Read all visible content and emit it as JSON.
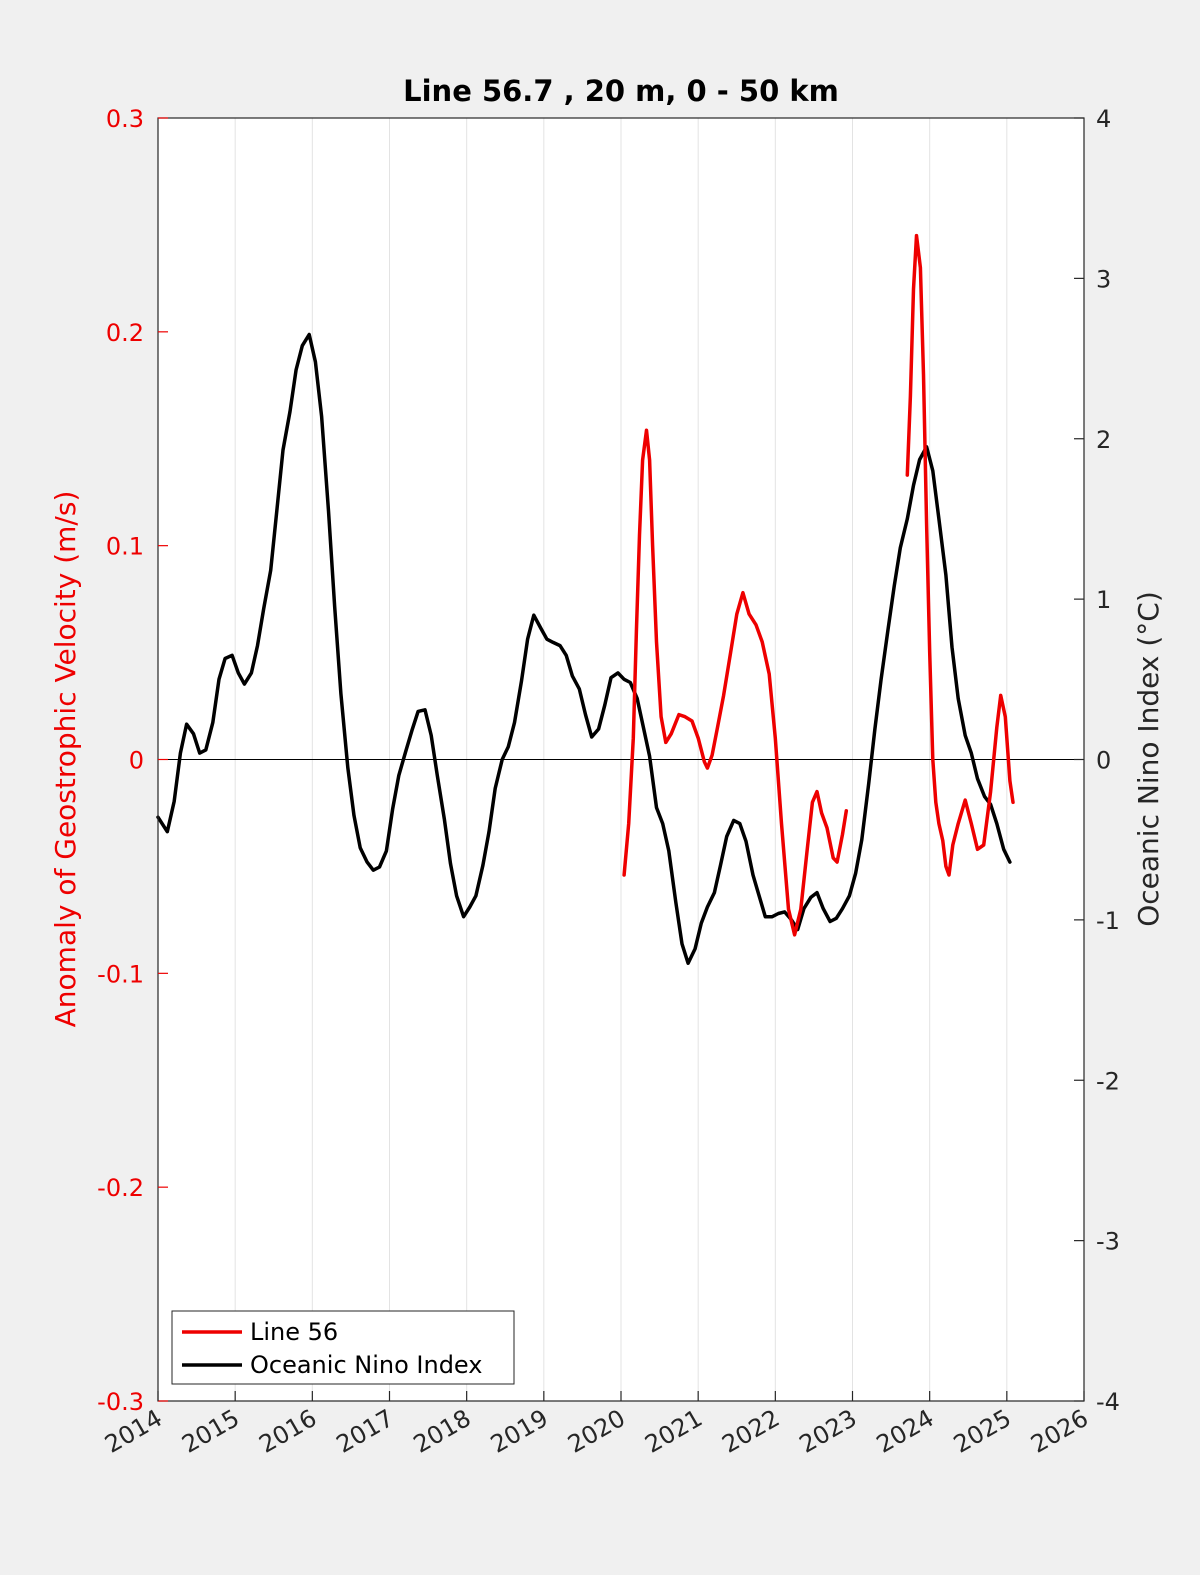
{
  "colors": {
    "figure_background": "#f0f0f0",
    "axes_background": "#ffffff",
    "line56": "#ee0000",
    "oni": "#000000",
    "left_axis": "#ee0000",
    "right_axis": "#262626",
    "grid": "#e3e3e3"
  },
  "chart_data": {
    "type": "line",
    "title": "Line 56.7 , 20 m, 0 - 50 km",
    "xlim": [
      2014,
      2026
    ],
    "xticks": [
      "2014",
      "2015",
      "2016",
      "2017",
      "2018",
      "2019",
      "2020",
      "2021",
      "2022",
      "2023",
      "2024",
      "2025",
      "2026"
    ],
    "xgrid": true,
    "zero_line": true,
    "left_axis": {
      "label": "Anomaly of Geostrophic Velocity (m/s)",
      "ylim": [
        -0.3,
        0.3
      ],
      "ticks": [
        {
          "value": 0.3,
          "label": "0.3"
        },
        {
          "value": 0.2,
          "label": "0.2"
        },
        {
          "value": 0.1,
          "label": "0.1"
        },
        {
          "value": 0,
          "label": "0"
        },
        {
          "value": -0.1,
          "label": "-0.1"
        },
        {
          "value": -0.2,
          "label": "-0.2"
        },
        {
          "value": -0.3,
          "label": "-0.3"
        }
      ]
    },
    "right_axis": {
      "label": "Oceanic Nino Index (°C)",
      "ylim": [
        -4,
        4
      ],
      "ticks": [
        {
          "value": 4,
          "label": "4"
        },
        {
          "value": 3,
          "label": "3"
        },
        {
          "value": 2,
          "label": "2"
        },
        {
          "value": 1,
          "label": "1"
        },
        {
          "value": 0,
          "label": "0"
        },
        {
          "value": -1,
          "label": "-1"
        },
        {
          "value": -2,
          "label": "-2"
        },
        {
          "value": -3,
          "label": "-3"
        },
        {
          "value": -4,
          "label": "-4"
        }
      ]
    },
    "legend": {
      "location": "bottom-left",
      "entries": [
        "Line 56",
        "Oceanic Nino Index"
      ]
    },
    "series": [
      {
        "name": "Line 56",
        "axis": "left",
        "segments": [
          [
            [
              2020.04,
              -0.054
            ],
            [
              2020.1,
              -0.03
            ],
            [
              2020.16,
              0.01
            ],
            [
              2020.2,
              0.06
            ],
            [
              2020.24,
              0.105
            ],
            [
              2020.28,
              0.14
            ],
            [
              2020.33,
              0.154
            ],
            [
              2020.37,
              0.14
            ],
            [
              2020.41,
              0.1
            ],
            [
              2020.46,
              0.055
            ],
            [
              2020.52,
              0.02
            ],
            [
              2020.58,
              0.008
            ],
            [
              2020.65,
              0.012
            ],
            [
              2020.75,
              0.021
            ],
            [
              2020.83,
              0.02
            ],
            [
              2020.92,
              0.018
            ],
            [
              2021.0,
              0.01
            ],
            [
              2021.08,
              -0.001
            ],
            [
              2021.12,
              -0.004
            ],
            [
              2021.18,
              0.002
            ],
            [
              2021.25,
              0.015
            ],
            [
              2021.33,
              0.03
            ],
            [
              2021.42,
              0.05
            ],
            [
              2021.5,
              0.068
            ],
            [
              2021.58,
              0.078
            ],
            [
              2021.66,
              0.068
            ],
            [
              2021.75,
              0.063
            ],
            [
              2021.83,
              0.055
            ],
            [
              2021.92,
              0.04
            ],
            [
              2022.0,
              0.01
            ],
            [
              2022.08,
              -0.03
            ],
            [
              2022.17,
              -0.07
            ],
            [
              2022.25,
              -0.082
            ],
            [
              2022.33,
              -0.07
            ],
            [
              2022.42,
              -0.04
            ],
            [
              2022.48,
              -0.02
            ],
            [
              2022.54,
              -0.015
            ],
            [
              2022.6,
              -0.025
            ],
            [
              2022.67,
              -0.032
            ],
            [
              2022.75,
              -0.046
            ],
            [
              2022.8,
              -0.048
            ],
            [
              2022.87,
              -0.035
            ],
            [
              2022.92,
              -0.024
            ]
          ],
          [
            [
              2023.71,
              0.133
            ],
            [
              2023.75,
              0.17
            ],
            [
              2023.79,
              0.22
            ],
            [
              2023.83,
              0.245
            ],
            [
              2023.88,
              0.23
            ],
            [
              2023.92,
              0.18
            ],
            [
              2023.96,
              0.11
            ],
            [
              2024.0,
              0.05
            ],
            [
              2024.04,
              0.0
            ],
            [
              2024.08,
              -0.02
            ],
            [
              2024.12,
              -0.03
            ],
            [
              2024.17,
              -0.038
            ],
            [
              2024.21,
              -0.05
            ],
            [
              2024.25,
              -0.054
            ],
            [
              2024.3,
              -0.04
            ],
            [
              2024.37,
              -0.03
            ],
            [
              2024.46,
              -0.019
            ],
            [
              2024.54,
              -0.03
            ],
            [
              2024.62,
              -0.042
            ],
            [
              2024.7,
              -0.04
            ],
            [
              2024.79,
              -0.015
            ],
            [
              2024.87,
              0.015
            ],
            [
              2024.92,
              0.03
            ],
            [
              2024.98,
              0.02
            ],
            [
              2025.04,
              -0.01
            ],
            [
              2025.08,
              -0.02
            ]
          ]
        ]
      },
      {
        "name": "Oceanic Nino Index",
        "axis": "right",
        "segments": [
          [
            [
              2014.0,
              -0.36
            ],
            [
              2014.12,
              -0.45
            ],
            [
              2014.21,
              -0.26
            ],
            [
              2014.29,
              0.04
            ],
            [
              2014.37,
              0.22
            ],
            [
              2014.46,
              0.16
            ],
            [
              2014.54,
              0.04
            ],
            [
              2014.62,
              0.06
            ],
            [
              2014.71,
              0.23
            ],
            [
              2014.79,
              0.5
            ],
            [
              2014.87,
              0.63
            ],
            [
              2014.96,
              0.65
            ],
            [
              2015.04,
              0.54
            ],
            [
              2015.12,
              0.47
            ],
            [
              2015.21,
              0.54
            ],
            [
              2015.29,
              0.71
            ],
            [
              2015.37,
              0.94
            ],
            [
              2015.46,
              1.18
            ],
            [
              2015.54,
              1.55
            ],
            [
              2015.62,
              1.93
            ],
            [
              2015.71,
              2.17
            ],
            [
              2015.79,
              2.43
            ],
            [
              2015.87,
              2.58
            ],
            [
              2015.96,
              2.65
            ],
            [
              2016.04,
              2.48
            ],
            [
              2016.12,
              2.14
            ],
            [
              2016.21,
              1.55
            ],
            [
              2016.29,
              0.95
            ],
            [
              2016.37,
              0.41
            ],
            [
              2016.46,
              -0.05
            ],
            [
              2016.54,
              -0.35
            ],
            [
              2016.62,
              -0.55
            ],
            [
              2016.71,
              -0.64
            ],
            [
              2016.79,
              -0.69
            ],
            [
              2016.87,
              -0.67
            ],
            [
              2016.96,
              -0.57
            ],
            [
              2017.04,
              -0.31
            ],
            [
              2017.12,
              -0.1
            ],
            [
              2017.21,
              0.05
            ],
            [
              2017.29,
              0.18
            ],
            [
              2017.37,
              0.3
            ],
            [
              2017.46,
              0.31
            ],
            [
              2017.54,
              0.15
            ],
            [
              2017.62,
              -0.1
            ],
            [
              2017.71,
              -0.37
            ],
            [
              2017.79,
              -0.65
            ],
            [
              2017.87,
              -0.85
            ],
            [
              2017.96,
              -0.98
            ],
            [
              2018.04,
              -0.92
            ],
            [
              2018.12,
              -0.85
            ],
            [
              2018.21,
              -0.66
            ],
            [
              2018.29,
              -0.45
            ],
            [
              2018.37,
              -0.18
            ],
            [
              2018.46,
              0.0
            ],
            [
              2018.54,
              0.08
            ],
            [
              2018.62,
              0.23
            ],
            [
              2018.71,
              0.49
            ],
            [
              2018.79,
              0.75
            ],
            [
              2018.87,
              0.9
            ],
            [
              2018.96,
              0.82
            ],
            [
              2019.04,
              0.75
            ],
            [
              2019.12,
              0.73
            ],
            [
              2019.21,
              0.71
            ],
            [
              2019.29,
              0.65
            ],
            [
              2019.37,
              0.52
            ],
            [
              2019.46,
              0.44
            ],
            [
              2019.54,
              0.28
            ],
            [
              2019.62,
              0.14
            ],
            [
              2019.71,
              0.19
            ],
            [
              2019.79,
              0.34
            ],
            [
              2019.87,
              0.51
            ],
            [
              2019.96,
              0.54
            ],
            [
              2020.04,
              0.5
            ],
            [
              2020.12,
              0.48
            ],
            [
              2020.21,
              0.38
            ],
            [
              2020.29,
              0.2
            ],
            [
              2020.37,
              0.02
            ],
            [
              2020.46,
              -0.3
            ],
            [
              2020.54,
              -0.4
            ],
            [
              2020.62,
              -0.57
            ],
            [
              2020.71,
              -0.89
            ],
            [
              2020.79,
              -1.15
            ],
            [
              2020.87,
              -1.27
            ],
            [
              2020.96,
              -1.18
            ],
            [
              2021.04,
              -1.02
            ],
            [
              2021.12,
              -0.92
            ],
            [
              2021.21,
              -0.83
            ],
            [
              2021.29,
              -0.66
            ],
            [
              2021.37,
              -0.48
            ],
            [
              2021.46,
              -0.38
            ],
            [
              2021.54,
              -0.4
            ],
            [
              2021.62,
              -0.51
            ],
            [
              2021.71,
              -0.72
            ],
            [
              2021.79,
              -0.85
            ],
            [
              2021.87,
              -0.98
            ],
            [
              2021.96,
              -0.98
            ],
            [
              2022.04,
              -0.96
            ],
            [
              2022.12,
              -0.95
            ],
            [
              2022.21,
              -1.0
            ],
            [
              2022.29,
              -1.06
            ],
            [
              2022.37,
              -0.93
            ],
            [
              2022.46,
              -0.86
            ],
            [
              2022.54,
              -0.83
            ],
            [
              2022.62,
              -0.93
            ],
            [
              2022.71,
              -1.01
            ],
            [
              2022.79,
              -0.99
            ],
            [
              2022.87,
              -0.93
            ],
            [
              2022.96,
              -0.85
            ],
            [
              2023.04,
              -0.71
            ],
            [
              2023.12,
              -0.5
            ],
            [
              2023.21,
              -0.15
            ],
            [
              2023.29,
              0.19
            ],
            [
              2023.37,
              0.5
            ],
            [
              2023.46,
              0.81
            ],
            [
              2023.54,
              1.08
            ],
            [
              2023.62,
              1.32
            ],
            [
              2023.71,
              1.5
            ],
            [
              2023.79,
              1.71
            ],
            [
              2023.87,
              1.87
            ],
            [
              2023.96,
              1.95
            ],
            [
              2024.04,
              1.8
            ],
            [
              2024.12,
              1.5
            ],
            [
              2024.21,
              1.15
            ],
            [
              2024.29,
              0.7
            ],
            [
              2024.37,
              0.38
            ],
            [
              2024.46,
              0.15
            ],
            [
              2024.54,
              0.04
            ],
            [
              2024.62,
              -0.12
            ],
            [
              2024.71,
              -0.23
            ],
            [
              2024.79,
              -0.28
            ],
            [
              2024.87,
              -0.4
            ],
            [
              2024.96,
              -0.56
            ],
            [
              2025.04,
              -0.64
            ]
          ]
        ]
      }
    ]
  }
}
